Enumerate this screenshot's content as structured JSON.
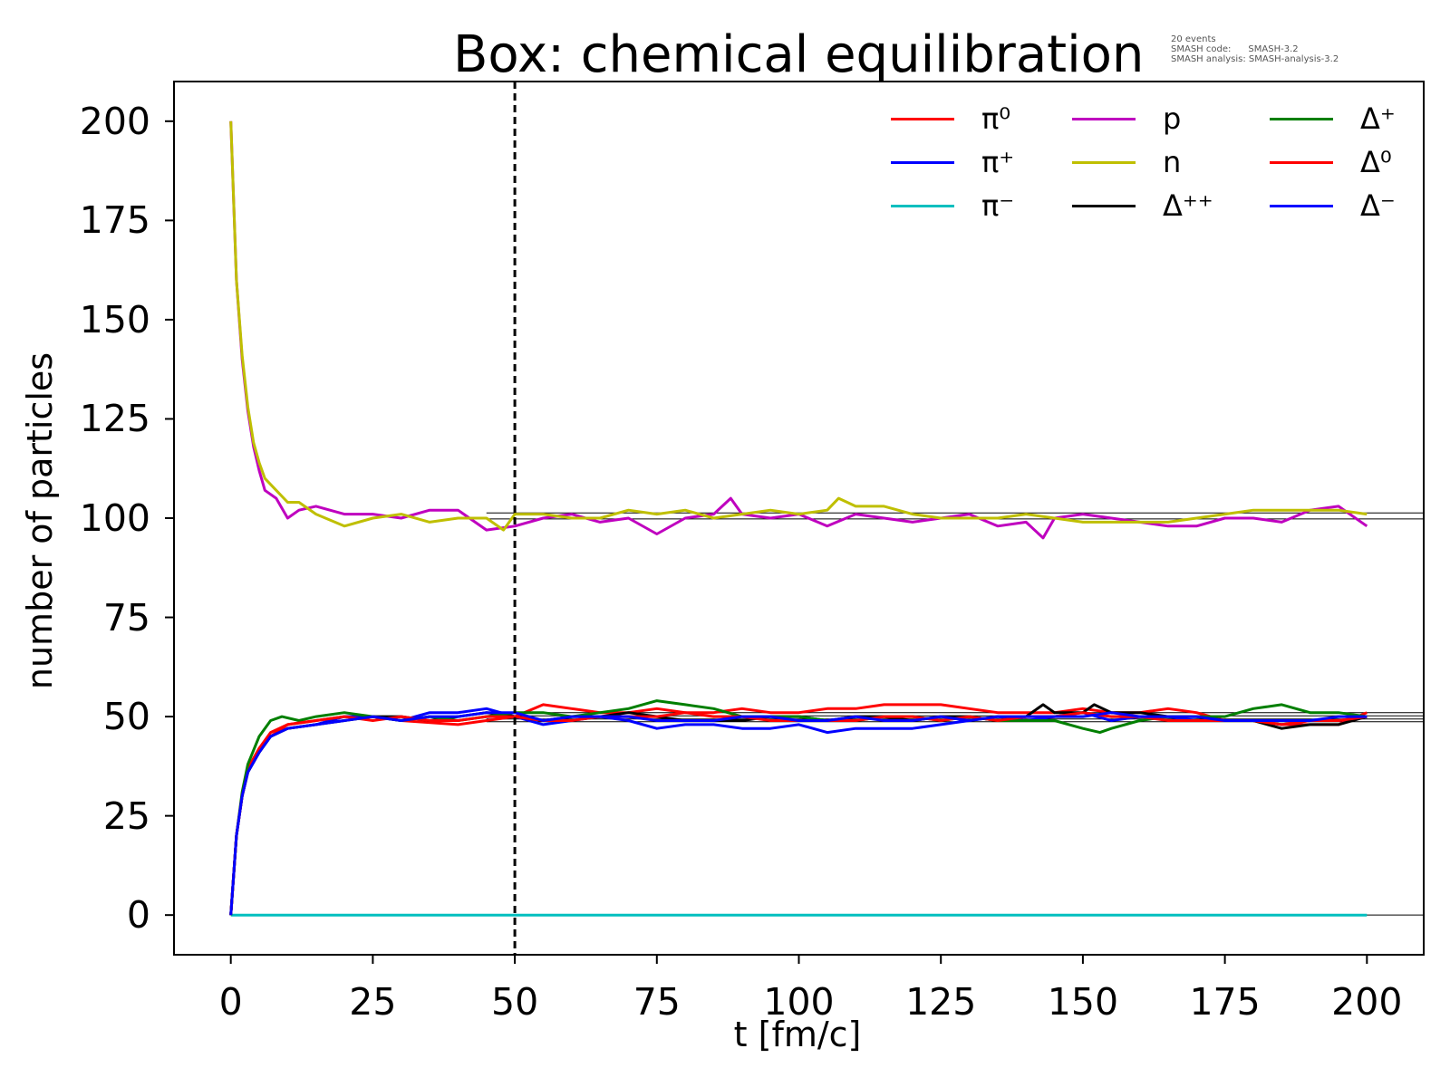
{
  "chart_data": {
    "type": "line",
    "title": "Box: chemical equilibration",
    "meta_lines": [
      "20 events",
      "SMASH code:      SMASH-3.2",
      "SMASH analysis: SMASH-analysis-3.2"
    ],
    "xlabel": "t [fm/c]",
    "ylabel": "number of particles",
    "xlim": [
      -10,
      210
    ],
    "ylim": [
      -10,
      210
    ],
    "xticks": [
      0,
      25,
      50,
      75,
      100,
      125,
      150,
      175,
      200
    ],
    "yticks": [
      0,
      25,
      50,
      75,
      100,
      125,
      150,
      175,
      200
    ],
    "grid": false,
    "legend_position": "top-right",
    "legend_columns": 3,
    "vline": {
      "x": 50,
      "style": "dashed",
      "color": "#000000"
    },
    "reference_lines": [
      {
        "y": 0,
        "xrange": [
          45,
          210
        ]
      },
      {
        "y": 99.8,
        "xrange": [
          45,
          210
        ]
      },
      {
        "y": 101.3,
        "xrange": [
          45,
          210
        ]
      },
      {
        "y": 48.7,
        "xrange": [
          45,
          210
        ]
      },
      {
        "y": 49.4,
        "xrange": [
          45,
          210
        ]
      },
      {
        "y": 50.2,
        "xrange": [
          45,
          210
        ]
      },
      {
        "y": 51.0,
        "xrange": [
          45,
          210
        ]
      }
    ],
    "series": [
      {
        "name": "π⁰",
        "color": "#ff0000",
        "x": [
          0,
          1,
          2,
          3,
          5,
          7,
          10,
          15,
          20,
          25,
          30,
          40,
          50,
          55,
          60,
          65,
          70,
          75,
          80,
          85,
          90,
          95,
          100,
          105,
          110,
          115,
          120,
          125,
          130,
          135,
          140,
          145,
          150,
          155,
          160,
          165,
          170,
          175,
          180,
          185,
          190,
          195,
          200
        ],
        "y": [
          0,
          20,
          30,
          37,
          42,
          46,
          48,
          49,
          50,
          50,
          49,
          48,
          50,
          53,
          52,
          51,
          51,
          52,
          51,
          51,
          52,
          51,
          51,
          52,
          52,
          53,
          53,
          53,
          52,
          51,
          51,
          51,
          52,
          51,
          51,
          52,
          51,
          49,
          49,
          48,
          48,
          48,
          51
        ]
      },
      {
        "name": "π⁺",
        "color": "#0000ff",
        "x": [
          0,
          1,
          2,
          3,
          5,
          7,
          10,
          15,
          20,
          25,
          30,
          35,
          40,
          45,
          50,
          55,
          60,
          65,
          70,
          75,
          80,
          85,
          90,
          95,
          100,
          105,
          110,
          115,
          120,
          125,
          130,
          135,
          140,
          145,
          150,
          155,
          160,
          165,
          170,
          175,
          180,
          185,
          190,
          195,
          200
        ],
        "y": [
          0,
          20,
          30,
          36,
          41,
          45,
          47,
          48,
          50,
          50,
          49,
          51,
          51,
          52,
          50,
          48,
          49,
          50,
          49,
          47,
          48,
          48,
          47,
          47,
          48,
          46,
          47,
          47,
          47,
          48,
          49,
          50,
          49,
          50,
          51,
          49,
          50,
          50,
          49,
          49,
          49,
          48,
          49,
          49,
          50
        ]
      },
      {
        "name": "π⁻",
        "color": "#00bfbf",
        "x": [
          0,
          45,
          200
        ],
        "y": [
          0,
          0,
          0
        ]
      },
      {
        "name": "p",
        "color": "#bf00bf",
        "x": [
          0,
          1,
          2,
          3,
          4,
          5,
          6,
          8,
          10,
          12,
          15,
          20,
          25,
          30,
          35,
          40,
          45,
          50,
          55,
          60,
          65,
          70,
          75,
          80,
          85,
          88,
          90,
          95,
          100,
          105,
          110,
          115,
          120,
          125,
          130,
          135,
          140,
          143,
          145,
          150,
          155,
          160,
          165,
          170,
          175,
          180,
          185,
          190,
          195,
          200
        ],
        "y": [
          200,
          160,
          140,
          127,
          118,
          112,
          107,
          105,
          100,
          102,
          103,
          101,
          101,
          100,
          102,
          102,
          97,
          98,
          100,
          101,
          99,
          100,
          96,
          100,
          101,
          105,
          101,
          100,
          101,
          98,
          101,
          100,
          99,
          100,
          101,
          98,
          99,
          95,
          100,
          101,
          100,
          99,
          98,
          98,
          100,
          100,
          99,
          102,
          103,
          98
        ]
      },
      {
        "name": "n",
        "color": "#bfbf00",
        "x": [
          0,
          1,
          2,
          3,
          4,
          5,
          6,
          8,
          10,
          12,
          15,
          20,
          25,
          30,
          35,
          40,
          45,
          48,
          50,
          55,
          60,
          65,
          70,
          75,
          80,
          85,
          90,
          95,
          100,
          105,
          107,
          110,
          115,
          120,
          125,
          130,
          135,
          140,
          145,
          150,
          155,
          160,
          165,
          170,
          175,
          180,
          185,
          190,
          195,
          200
        ],
        "y": [
          200,
          160,
          141,
          128,
          119,
          114,
          110,
          107,
          104,
          104,
          101,
          98,
          100,
          101,
          99,
          100,
          100,
          97,
          101,
          101,
          100,
          100,
          102,
          101,
          102,
          100,
          101,
          102,
          101,
          102,
          105,
          103,
          103,
          101,
          100,
          100,
          100,
          101,
          100,
          99,
          99,
          99,
          99,
          100,
          101,
          102,
          102,
          102,
          102,
          101
        ]
      },
      {
        "name": "Δ⁺⁺",
        "color": "#000000",
        "x": [
          0,
          1,
          2,
          3,
          5,
          7,
          10,
          15,
          20,
          25,
          30,
          35,
          40,
          45,
          50,
          55,
          60,
          65,
          70,
          75,
          80,
          85,
          90,
          95,
          100,
          105,
          110,
          115,
          120,
          125,
          130,
          135,
          140,
          143,
          145,
          150,
          152,
          155,
          160,
          165,
          170,
          175,
          180,
          185,
          190,
          195,
          200
        ],
        "y": [
          0,
          20,
          30,
          36,
          41,
          45,
          47,
          48,
          49,
          50,
          50,
          49,
          50,
          51,
          50,
          49,
          50,
          50,
          51,
          50,
          49,
          49,
          49,
          50,
          50,
          49,
          50,
          50,
          49,
          50,
          50,
          49,
          50,
          53,
          51,
          51,
          53,
          51,
          51,
          50,
          50,
          49,
          49,
          47,
          48,
          48,
          50
        ]
      },
      {
        "name": "Δ⁺",
        "color": "#007f00",
        "x": [
          0,
          1,
          2,
          3,
          5,
          7,
          9,
          12,
          15,
          20,
          25,
          30,
          35,
          40,
          45,
          50,
          55,
          60,
          65,
          70,
          75,
          80,
          85,
          90,
          95,
          100,
          105,
          110,
          115,
          120,
          125,
          130,
          135,
          140,
          145,
          150,
          153,
          155,
          160,
          165,
          170,
          175,
          180,
          185,
          190,
          195,
          200
        ],
        "y": [
          0,
          20,
          31,
          38,
          45,
          49,
          50,
          49,
          50,
          51,
          50,
          49,
          50,
          49,
          50,
          51,
          51,
          50,
          51,
          52,
          54,
          53,
          52,
          50,
          50,
          50,
          49,
          49,
          50,
          50,
          49,
          50,
          49,
          49,
          49,
          47,
          46,
          47,
          49,
          50,
          50,
          50,
          52,
          53,
          51,
          51,
          50
        ]
      },
      {
        "name": "Δ⁰",
        "color": "#ff0000",
        "x": [
          0,
          1,
          2,
          3,
          5,
          7,
          10,
          15,
          20,
          25,
          30,
          35,
          40,
          45,
          50,
          55,
          60,
          65,
          70,
          75,
          80,
          85,
          90,
          95,
          100,
          105,
          110,
          115,
          120,
          125,
          130,
          135,
          140,
          145,
          150,
          155,
          160,
          165,
          170,
          175,
          180,
          185,
          190,
          195,
          200
        ],
        "y": [
          0,
          20,
          30,
          36,
          42,
          45,
          48,
          49,
          50,
          49,
          50,
          49,
          49,
          50,
          50,
          49,
          49,
          50,
          50,
          50,
          51,
          50,
          50,
          49,
          49,
          49,
          49,
          50,
          50,
          49,
          50,
          49,
          50,
          50,
          51,
          50,
          50,
          49,
          49,
          49,
          49,
          48,
          49,
          49,
          50
        ]
      },
      {
        "name": "Δ⁻",
        "color": "#0000ff",
        "x": [
          0,
          1,
          2,
          3,
          5,
          7,
          10,
          15,
          20,
          25,
          30,
          35,
          40,
          45,
          50,
          55,
          60,
          65,
          70,
          75,
          80,
          85,
          90,
          95,
          100,
          105,
          110,
          115,
          120,
          125,
          130,
          135,
          140,
          145,
          150,
          155,
          160,
          165,
          170,
          175,
          180,
          185,
          190,
          195,
          200
        ],
        "y": [
          0,
          20,
          30,
          36,
          41,
          45,
          47,
          48,
          49,
          50,
          49,
          50,
          50,
          51,
          51,
          49,
          50,
          50,
          50,
          49,
          49,
          49,
          50,
          50,
          49,
          49,
          50,
          49,
          49,
          50,
          49,
          50,
          50,
          50,
          50,
          51,
          50,
          50,
          50,
          49,
          49,
          49,
          49,
          50,
          50
        ]
      }
    ]
  }
}
